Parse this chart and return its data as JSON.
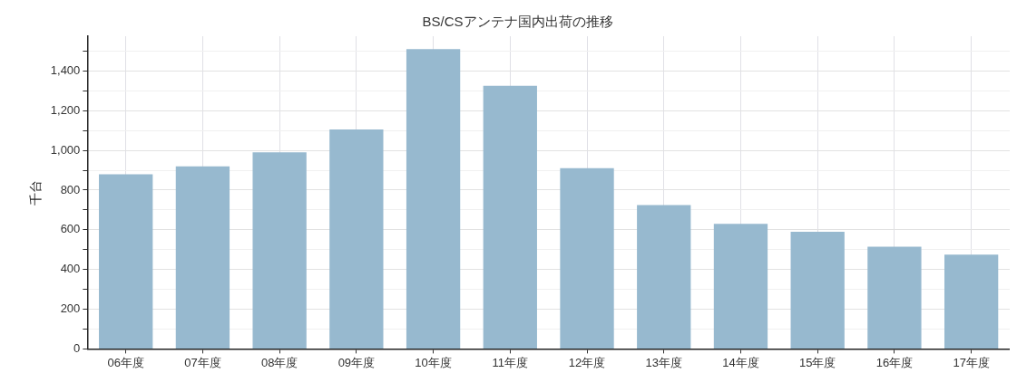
{
  "chart_data": {
    "type": "bar",
    "title": "BS/CSアンテナ国内出荷の推移",
    "ylabel": "千台",
    "categories": [
      "06年度",
      "07年度",
      "08年度",
      "09年度",
      "10年度",
      "11年度",
      "12年度",
      "13年度",
      "14年度",
      "15年度",
      "16年度",
      "17年度"
    ],
    "values": [
      880,
      920,
      990,
      1105,
      1510,
      1325,
      910,
      725,
      630,
      590,
      515,
      475
    ],
    "color": "#97b9cf",
    "ylim": [
      0,
      1575
    ],
    "yticks": [
      0,
      {
        "value": 100,
        "label": null
      },
      200,
      {
        "value": 300,
        "label": null
      },
      400,
      {
        "value": 500,
        "label": null
      },
      600,
      {
        "value": 700,
        "label": null
      },
      800,
      {
        "value": 900,
        "label": null
      },
      {
        "value": 1000,
        "label": "1,000"
      },
      {
        "value": 1100,
        "label": null
      },
      {
        "value": 1200,
        "label": "1,200"
      },
      {
        "value": 1300,
        "label": null
      },
      {
        "value": 1400,
        "label": "1,400"
      },
      {
        "value": 1500,
        "label": null
      }
    ],
    "grid": true,
    "legend": false
  }
}
